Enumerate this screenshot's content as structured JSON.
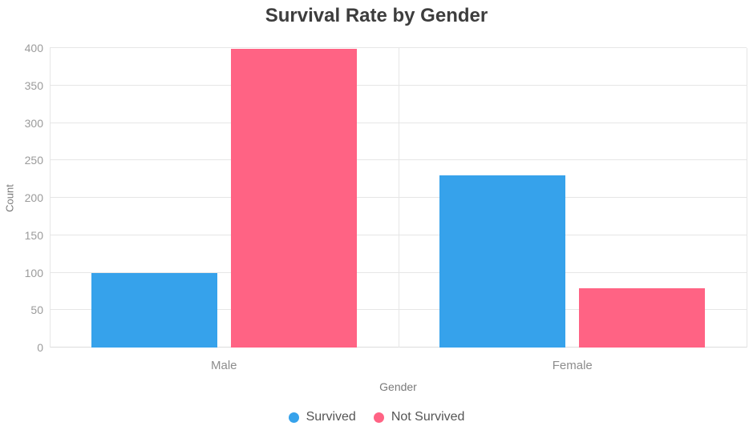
{
  "chart_data": {
    "type": "bar",
    "title": "Survival Rate by Gender",
    "xlabel": "Gender",
    "ylabel": "Count",
    "categories": [
      "Male",
      "Female"
    ],
    "series": [
      {
        "name": "Survived",
        "color": "#36A2EB",
        "values": [
          99,
          230
        ]
      },
      {
        "name": "Not Survived",
        "color": "#FF6384",
        "values": [
          399,
          79
        ]
      }
    ],
    "ylim": [
      0,
      400
    ],
    "ytick_step": 50,
    "grid": true,
    "legend_position": "bottom"
  }
}
